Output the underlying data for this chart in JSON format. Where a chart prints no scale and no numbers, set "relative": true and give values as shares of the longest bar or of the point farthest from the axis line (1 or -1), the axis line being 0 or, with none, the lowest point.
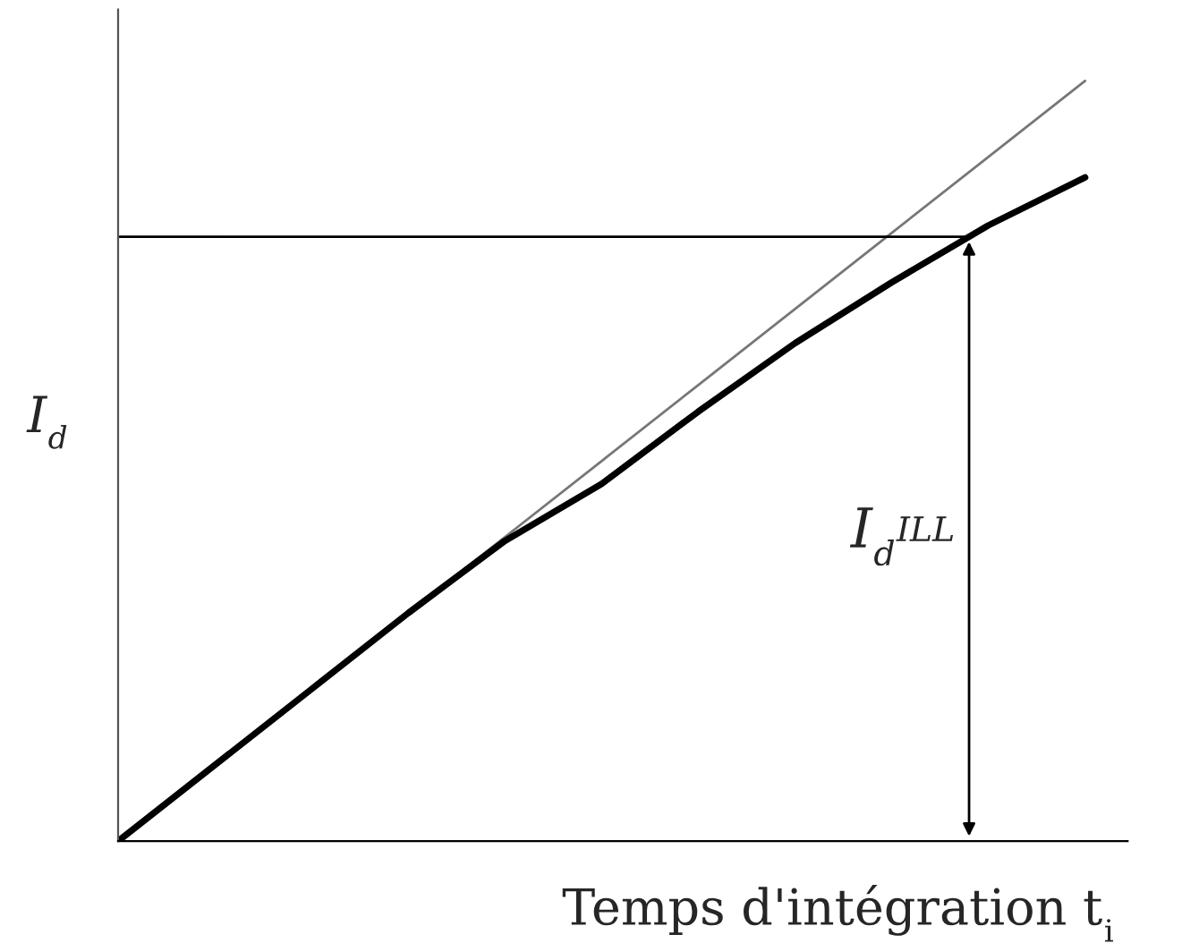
{
  "chart_data": {
    "type": "line",
    "relative": true,
    "xlabel": "Temps d'intégration t$_{i}$",
    "ylabel": "I$_{d}$",
    "categories": [
      null,
      null,
      null,
      null,
      null,
      null,
      null,
      null,
      null,
      null,
      null
    ],
    "series": [
      {
        "color": "#777777",
        "values": [
          0,
          0.1,
          0.2,
          0.3,
          0.4,
          0.5,
          0.6,
          0.7,
          0.8,
          0.9,
          1.0
        ]
      },
      {
        "color": "#000000",
        "values": [
          0,
          0.1,
          0.2,
          0.3,
          0.395,
          0.47,
          0.565,
          0.655,
          0.735,
          0.81,
          0.873
        ]
      }
    ],
    "ref_lines": [
      {
        "axis": "y",
        "value": 0.795,
        "label": "I$_{d}$$^{ILL}$",
        "color": "#000000"
      }
    ],
    "legend": false,
    "marker": "none",
    "line_style": "solid"
  }
}
